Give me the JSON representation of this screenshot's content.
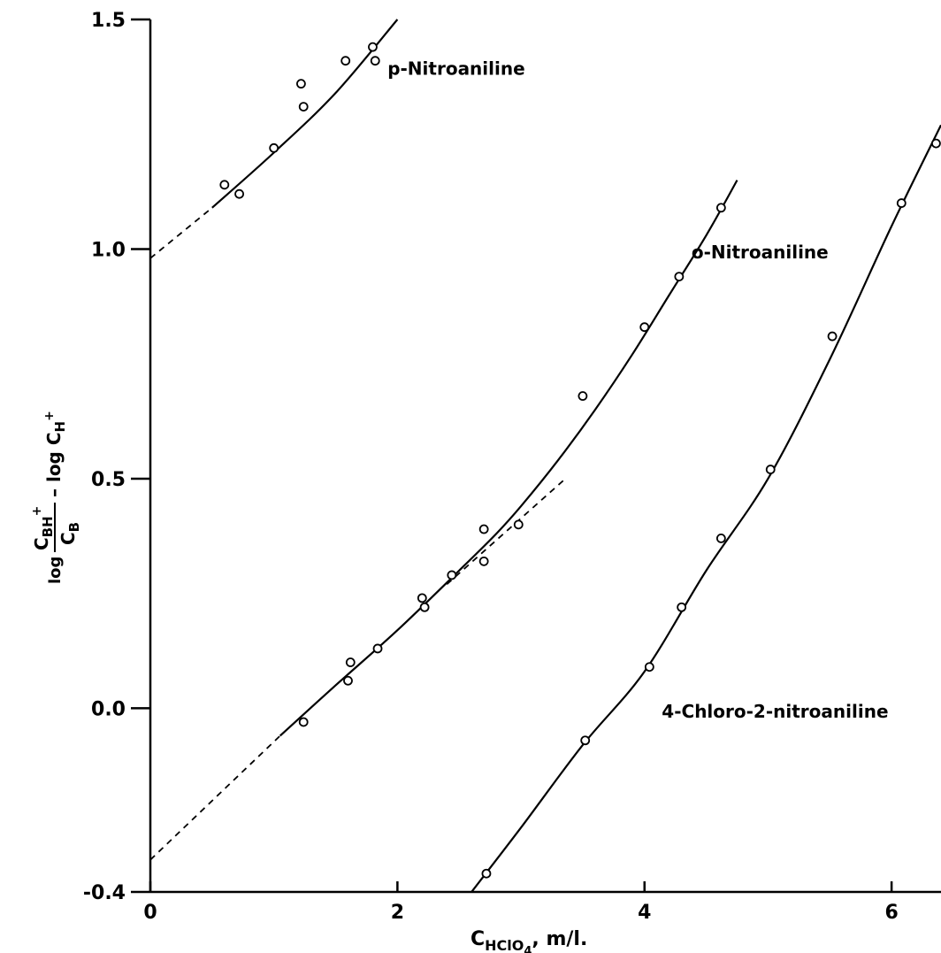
{
  "chart_data": {
    "type": "scatter",
    "title": "",
    "xlim": [
      0,
      6.4
    ],
    "ylim": [
      -0.4,
      1.5
    ],
    "grid": false,
    "legend": "none",
    "xticks": [
      0,
      2,
      4,
      6
    ],
    "xtick_labels": [
      "0",
      "2",
      "4",
      "6"
    ],
    "yticks": [
      -0.4,
      0.0,
      0.5,
      1.0,
      1.5
    ],
    "ytick_labels": [
      "-0.4",
      "0.0",
      "0.5",
      "1.0",
      "1.5"
    ],
    "xlabel": {
      "main": "C",
      "subscript": "HClO",
      "sub_subscript": "4",
      "suffix": ", m/l."
    },
    "ylabel": {
      "lead": "log",
      "numerator": "C",
      "numerator_sub": "BH",
      "numerator_sup": "+",
      "denominator": "C",
      "denominator_sub": "B",
      "tail": "– log C",
      "tail_sub": "H",
      "tail_sup": "+"
    },
    "series": [
      {
        "name": "p-Nitroaniline",
        "label_at": [
          1.92,
          1.38
        ],
        "points": [
          [
            0.6,
            1.14
          ],
          [
            0.72,
            1.12
          ],
          [
            1.0,
            1.22
          ],
          [
            1.22,
            1.36
          ],
          [
            1.24,
            1.31
          ],
          [
            1.58,
            1.41
          ],
          [
            1.8,
            1.44
          ],
          [
            1.82,
            1.41
          ]
        ],
        "fit": [
          [
            0.5,
            1.09
          ],
          [
            1.0,
            1.21
          ],
          [
            1.5,
            1.34
          ],
          [
            2.0,
            1.5
          ]
        ],
        "extrapolation": [
          [
            0.0,
            0.98
          ],
          [
            0.5,
            1.09
          ]
        ]
      },
      {
        "name": "o-Nitroaniline",
        "label_at": [
          4.38,
          0.98
        ],
        "points": [
          [
            1.24,
            -0.03
          ],
          [
            1.6,
            0.06
          ],
          [
            1.62,
            0.1
          ],
          [
            1.84,
            0.13
          ],
          [
            2.2,
            0.24
          ],
          [
            2.22,
            0.22
          ],
          [
            2.44,
            0.29
          ],
          [
            2.7,
            0.32
          ],
          [
            2.7,
            0.39
          ],
          [
            2.98,
            0.4
          ],
          [
            3.5,
            0.68
          ],
          [
            4.0,
            0.83
          ],
          [
            4.28,
            0.94
          ],
          [
            4.62,
            1.09
          ]
        ],
        "fit": [
          [
            1.05,
            -0.06
          ],
          [
            1.5,
            0.05
          ],
          [
            2.0,
            0.17
          ],
          [
            2.5,
            0.3
          ],
          [
            2.8,
            0.38
          ],
          [
            3.0,
            0.44
          ],
          [
            3.3,
            0.54
          ],
          [
            3.6,
            0.65
          ],
          [
            3.9,
            0.77
          ],
          [
            4.2,
            0.9
          ],
          [
            4.5,
            1.03
          ],
          [
            4.75,
            1.15
          ]
        ],
        "extrapolation": [
          [
            0.0,
            -0.33
          ],
          [
            1.05,
            -0.06
          ]
        ],
        "initial_slope_extension": [
          [
            2.4,
            0.27
          ],
          [
            3.36,
            0.5
          ]
        ]
      },
      {
        "name": "4-Chloro-2-nitroaniline",
        "label_at": [
          4.14,
          -0.02
        ],
        "points": [
          [
            2.72,
            -0.36
          ],
          [
            3.52,
            -0.07
          ],
          [
            4.04,
            0.09
          ],
          [
            4.3,
            0.22
          ],
          [
            4.62,
            0.37
          ],
          [
            5.02,
            0.52
          ],
          [
            5.52,
            0.81
          ],
          [
            6.08,
            1.1
          ],
          [
            6.36,
            1.23
          ]
        ],
        "fit": [
          [
            2.6,
            -0.4
          ],
          [
            3.0,
            -0.26
          ],
          [
            3.5,
            -0.08
          ],
          [
            4.0,
            0.08
          ],
          [
            4.5,
            0.3
          ],
          [
            5.0,
            0.5
          ],
          [
            5.5,
            0.76
          ],
          [
            6.0,
            1.05
          ],
          [
            6.4,
            1.27
          ]
        ]
      }
    ]
  }
}
